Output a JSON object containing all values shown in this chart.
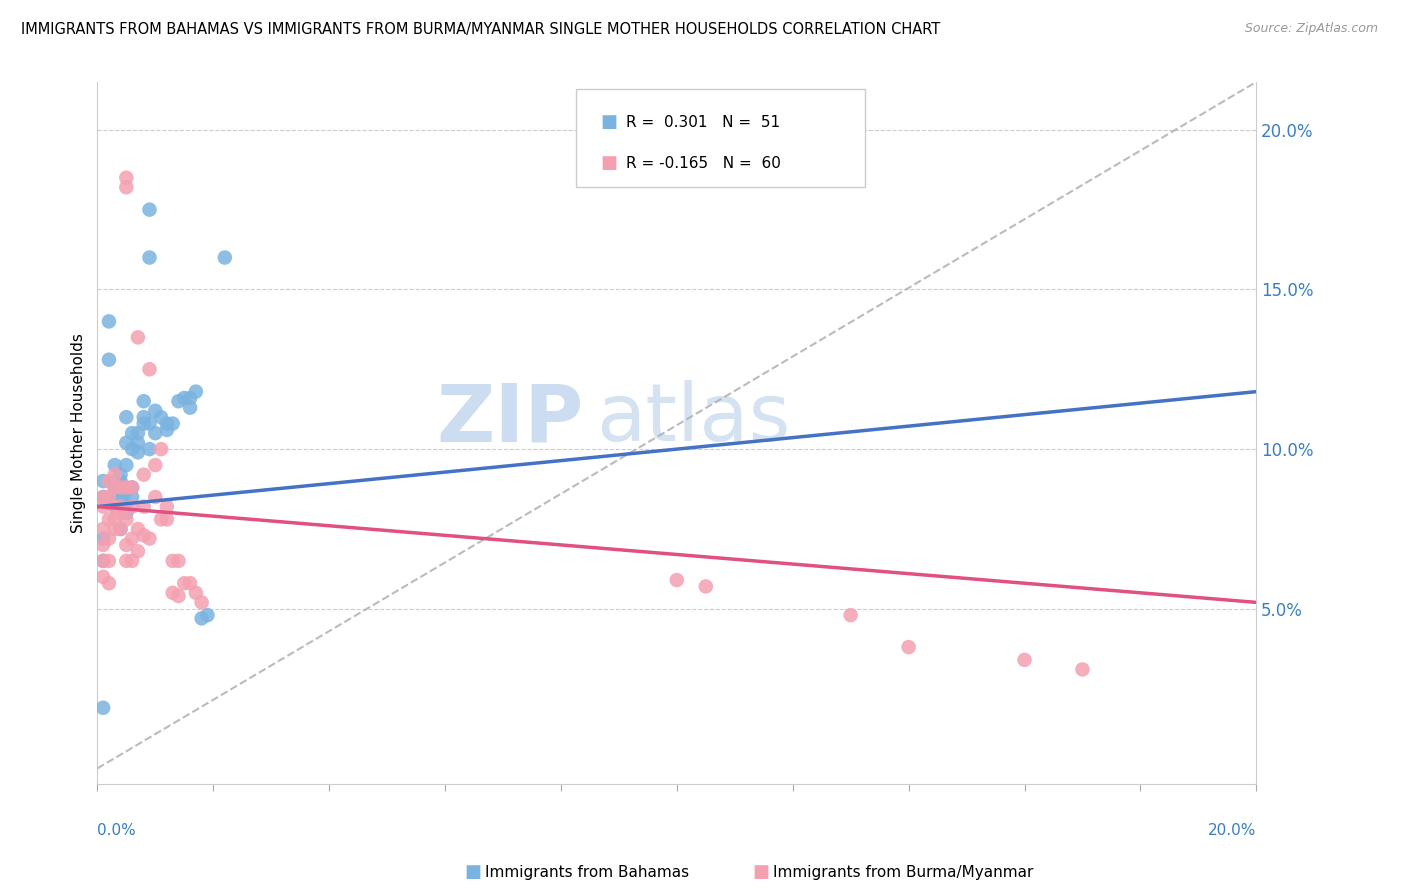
{
  "title": "IMMIGRANTS FROM BAHAMAS VS IMMIGRANTS FROM BURMA/MYANMAR SINGLE MOTHER HOUSEHOLDS CORRELATION CHART",
  "source": "Source: ZipAtlas.com",
  "ylabel": "Single Mother Households",
  "right_yticks": [
    "5.0%",
    "10.0%",
    "15.0%",
    "20.0%"
  ],
  "right_ytick_vals": [
    0.05,
    0.1,
    0.15,
    0.2
  ],
  "xlim": [
    0.0,
    0.2
  ],
  "ylim": [
    -0.005,
    0.215
  ],
  "color_bahamas": "#7ab3e0",
  "color_burma": "#f4a0b0",
  "color_bahamas_line": "#4472c4",
  "color_burma_line": "#e05080",
  "color_diag_line": "#b0b0b0",
  "watermark_zip": "ZIP",
  "watermark_atlas": "atlas",
  "bahamas_line": [
    0.0,
    0.2,
    0.082,
    0.118
  ],
  "burma_line": [
    0.0,
    0.2,
    0.082,
    0.052
  ],
  "diag_line": [
    0.0,
    0.2,
    0.0,
    0.215
  ],
  "bahamas_points": [
    [
      0.001,
      0.085
    ],
    [
      0.001,
      0.09
    ],
    [
      0.002,
      0.14
    ],
    [
      0.002,
      0.083
    ],
    [
      0.002,
      0.128
    ],
    [
      0.003,
      0.085
    ],
    [
      0.003,
      0.09
    ],
    [
      0.003,
      0.082
    ],
    [
      0.003,
      0.095
    ],
    [
      0.003,
      0.088
    ],
    [
      0.004,
      0.085
    ],
    [
      0.004,
      0.075
    ],
    [
      0.004,
      0.092
    ],
    [
      0.004,
      0.09
    ],
    [
      0.005,
      0.08
    ],
    [
      0.005,
      0.087
    ],
    [
      0.005,
      0.083
    ],
    [
      0.005,
      0.095
    ],
    [
      0.005,
      0.102
    ],
    [
      0.005,
      0.11
    ],
    [
      0.006,
      0.1
    ],
    [
      0.006,
      0.105
    ],
    [
      0.006,
      0.088
    ],
    [
      0.006,
      0.085
    ],
    [
      0.007,
      0.105
    ],
    [
      0.007,
      0.102
    ],
    [
      0.007,
      0.099
    ],
    [
      0.008,
      0.115
    ],
    [
      0.008,
      0.11
    ],
    [
      0.008,
      0.108
    ],
    [
      0.009,
      0.175
    ],
    [
      0.009,
      0.16
    ],
    [
      0.009,
      0.108
    ],
    [
      0.009,
      0.1
    ],
    [
      0.01,
      0.112
    ],
    [
      0.01,
      0.105
    ],
    [
      0.011,
      0.11
    ],
    [
      0.012,
      0.106
    ],
    [
      0.012,
      0.108
    ],
    [
      0.013,
      0.108
    ],
    [
      0.014,
      0.115
    ],
    [
      0.015,
      0.116
    ],
    [
      0.016,
      0.116
    ],
    [
      0.016,
      0.113
    ],
    [
      0.017,
      0.118
    ],
    [
      0.018,
      0.047
    ],
    [
      0.019,
      0.048
    ],
    [
      0.022,
      0.16
    ],
    [
      0.001,
      0.072
    ],
    [
      0.001,
      0.065
    ],
    [
      0.001,
      0.019
    ]
  ],
  "burma_points": [
    [
      0.001,
      0.085
    ],
    [
      0.001,
      0.082
    ],
    [
      0.001,
      0.075
    ],
    [
      0.001,
      0.07
    ],
    [
      0.001,
      0.065
    ],
    [
      0.001,
      0.06
    ],
    [
      0.002,
      0.09
    ],
    [
      0.002,
      0.085
    ],
    [
      0.002,
      0.078
    ],
    [
      0.002,
      0.072
    ],
    [
      0.002,
      0.065
    ],
    [
      0.002,
      0.058
    ],
    [
      0.003,
      0.088
    ],
    [
      0.003,
      0.082
    ],
    [
      0.003,
      0.075
    ],
    [
      0.003,
      0.078
    ],
    [
      0.003,
      0.092
    ],
    [
      0.004,
      0.08
    ],
    [
      0.004,
      0.075
    ],
    [
      0.004,
      0.082
    ],
    [
      0.004,
      0.088
    ],
    [
      0.005,
      0.088
    ],
    [
      0.005,
      0.078
    ],
    [
      0.005,
      0.07
    ],
    [
      0.005,
      0.065
    ],
    [
      0.005,
      0.185
    ],
    [
      0.005,
      0.182
    ],
    [
      0.006,
      0.082
    ],
    [
      0.006,
      0.088
    ],
    [
      0.006,
      0.072
    ],
    [
      0.006,
      0.065
    ],
    [
      0.007,
      0.135
    ],
    [
      0.007,
      0.075
    ],
    [
      0.007,
      0.068
    ],
    [
      0.008,
      0.092
    ],
    [
      0.008,
      0.082
    ],
    [
      0.008,
      0.073
    ],
    [
      0.009,
      0.125
    ],
    [
      0.009,
      0.072
    ],
    [
      0.01,
      0.095
    ],
    [
      0.01,
      0.085
    ],
    [
      0.011,
      0.1
    ],
    [
      0.011,
      0.078
    ],
    [
      0.012,
      0.082
    ],
    [
      0.012,
      0.078
    ],
    [
      0.013,
      0.065
    ],
    [
      0.013,
      0.055
    ],
    [
      0.014,
      0.065
    ],
    [
      0.014,
      0.054
    ],
    [
      0.015,
      0.058
    ],
    [
      0.016,
      0.058
    ],
    [
      0.017,
      0.055
    ],
    [
      0.018,
      0.052
    ],
    [
      0.1,
      0.059
    ],
    [
      0.105,
      0.057
    ],
    [
      0.13,
      0.048
    ],
    [
      0.14,
      0.038
    ],
    [
      0.16,
      0.034
    ],
    [
      0.17,
      0.031
    ]
  ]
}
